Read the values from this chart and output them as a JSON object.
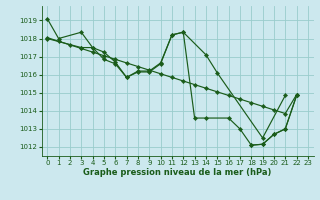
{
  "title": "Graphe pression niveau de la mer (hPa)",
  "bg_color": "#cce8ee",
  "grid_color": "#99cccc",
  "line_color": "#1a5c1a",
  "xlim": [
    -0.5,
    23.5
  ],
  "ylim": [
    1011.5,
    1019.8
  ],
  "yticks": [
    1012,
    1013,
    1014,
    1015,
    1016,
    1017,
    1018,
    1019
  ],
  "xticks": [
    0,
    1,
    2,
    3,
    4,
    5,
    6,
    7,
    8,
    9,
    10,
    11,
    12,
    13,
    14,
    15,
    16,
    17,
    18,
    19,
    20,
    21,
    22,
    23
  ],
  "line1_x": [
    0,
    1,
    3,
    4,
    5,
    6,
    7,
    8,
    9,
    10,
    11,
    12,
    14,
    15,
    19,
    21
  ],
  "line1_y": [
    1019.1,
    1018.0,
    1018.35,
    1017.5,
    1016.85,
    1016.6,
    1015.85,
    1016.2,
    1016.2,
    1016.65,
    1018.2,
    1018.35,
    1017.1,
    1016.1,
    1012.5,
    1014.85
  ],
  "line2_x": [
    0,
    1,
    2,
    3,
    4,
    5,
    6,
    7,
    8,
    9,
    10,
    11,
    12,
    13,
    14,
    15,
    16,
    17,
    18,
    19,
    20,
    21,
    22
  ],
  "line2_y": [
    1018.05,
    1017.85,
    1017.65,
    1017.45,
    1017.25,
    1017.05,
    1016.85,
    1016.65,
    1016.45,
    1016.25,
    1016.05,
    1015.85,
    1015.65,
    1015.45,
    1015.25,
    1015.05,
    1014.85,
    1014.65,
    1014.45,
    1014.25,
    1014.05,
    1013.85,
    1014.9
  ],
  "line3_x": [
    0,
    3,
    4,
    5,
    6,
    7,
    8,
    9,
    10,
    11,
    12,
    13,
    14,
    16,
    17,
    18,
    19,
    20,
    21,
    22
  ],
  "line3_y": [
    1018.0,
    1017.5,
    1017.5,
    1017.25,
    1016.7,
    1015.85,
    1016.15,
    1016.15,
    1016.6,
    1018.2,
    1018.35,
    1013.6,
    1013.6,
    1013.6,
    1013.0,
    1012.1,
    1012.15,
    1012.7,
    1013.0,
    1014.85
  ],
  "line4_x": [
    18,
    19,
    20,
    21,
    22
  ],
  "line4_y": [
    1012.1,
    1012.15,
    1012.7,
    1013.0,
    1014.85
  ]
}
